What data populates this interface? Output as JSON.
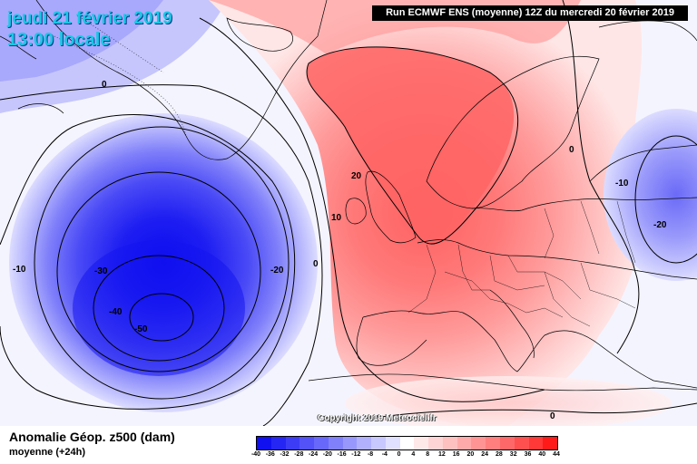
{
  "header": {
    "date": "jeudi 21 février 2019",
    "time": "13:00 locale",
    "run": "Run ECMWF ENS (moyenne) 12Z du mercredi 20 février 2019"
  },
  "copyright": "Copyright 2019 Meteociel.fr",
  "footer": {
    "title": "Anomalie Géop. z500 (dam)",
    "subtitle": "moyenne   (+24h)"
  },
  "legend": {
    "ticks": [
      "-40",
      "-36",
      "-32",
      "-28",
      "-24",
      "-20",
      "-16",
      "-12",
      "-8",
      "-4",
      "0",
      "4",
      "8",
      "12",
      "16",
      "20",
      "24",
      "28",
      "32",
      "36",
      "40",
      "44"
    ],
    "colors": [
      "#1010f0",
      "#2626f4",
      "#3c3cf6",
      "#5252f8",
      "#6868fa",
      "#8080fb",
      "#9898fc",
      "#b0b0fd",
      "#c8c8fe",
      "#e0e0ff",
      "#ffffff",
      "#ffe8e8",
      "#ffd4d4",
      "#ffc0c0",
      "#ffaaaa",
      "#ff9494",
      "#ff7e7e",
      "#ff6868",
      "#ff5050",
      "#ff3838",
      "#ff1a1a"
    ]
  },
  "contour_labels": [
    {
      "text": "0",
      "pos": "west-north"
    },
    {
      "text": "-10",
      "pos": "west"
    },
    {
      "text": "-30",
      "pos": "atlantic-center"
    },
    {
      "text": "-20",
      "pos": "atlantic-east"
    },
    {
      "text": "-40",
      "pos": "atlantic-low"
    },
    {
      "text": "-50",
      "pos": "low-center"
    },
    {
      "text": "0",
      "pos": "atlantic-ridge-west"
    },
    {
      "text": "10",
      "pos": "ridge-10"
    },
    {
      "text": "20",
      "pos": "ridge-20"
    },
    {
      "text": "0",
      "pos": "scandinavia"
    },
    {
      "text": "-10",
      "pos": "east-low"
    },
    {
      "text": "-20",
      "pos": "east-low-center"
    },
    {
      "text": "0",
      "pos": "mediterranean"
    }
  ]
}
